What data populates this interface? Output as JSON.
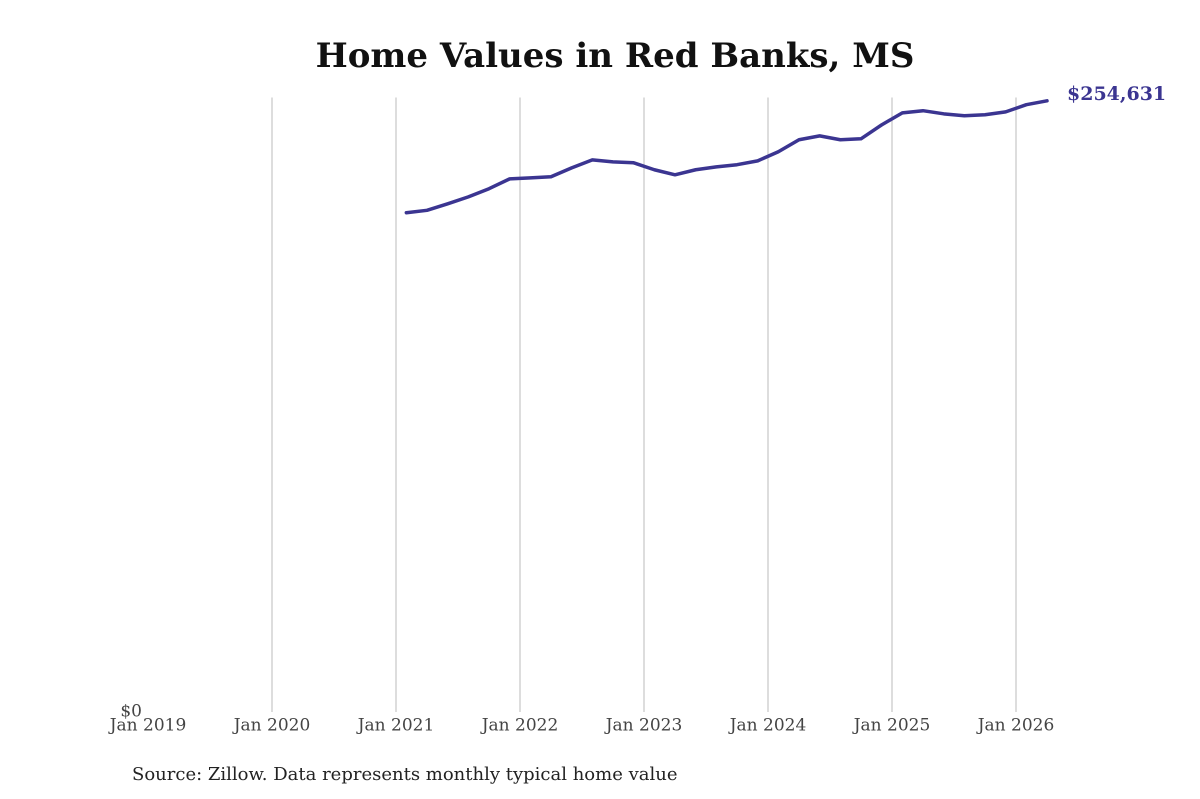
{
  "chart_data": {
    "type": "line",
    "title": "Home Values in Red Banks, MS",
    "source": "Source: Zillow. Data represents monthly typical home value",
    "x": [
      "2021-02",
      "2021-04",
      "2021-06",
      "2021-08",
      "2021-10",
      "2021-12",
      "2022-02",
      "2022-04",
      "2022-06",
      "2022-08",
      "2022-10",
      "2022-12",
      "2023-02",
      "2023-04",
      "2023-06",
      "2023-08",
      "2023-10",
      "2023-12",
      "2024-02",
      "2024-04",
      "2024-06",
      "2024-08",
      "2024-10",
      "2024-12",
      "2025-02",
      "2025-04",
      "2025-06",
      "2025-08",
      "2025-10",
      "2025-12",
      "2026-02",
      "2026-04"
    ],
    "series": [
      {
        "name": "Typical home value",
        "color": "#3b3591",
        "values": [
          208000,
          209000,
          211700,
          214600,
          218000,
          222100,
          222500,
          223000,
          226700,
          230000,
          229200,
          228800,
          225900,
          223800,
          225900,
          227100,
          228000,
          229600,
          233400,
          238400,
          240000,
          238400,
          238800,
          244600,
          249600,
          250500,
          249200,
          248400,
          248800,
          250000,
          253000,
          254631
        ],
        "value_labels": [
          null,
          null,
          null,
          null,
          null,
          null,
          null,
          null,
          null,
          null,
          null,
          null,
          null,
          null,
          null,
          null,
          null,
          null,
          null,
          null,
          null,
          null,
          null,
          null,
          null,
          null,
          null,
          null,
          null,
          null,
          null,
          "$254,631"
        ]
      }
    ],
    "xlim": [
      "2019-01",
      "2026-04"
    ],
    "xticks": [
      {
        "value": "2019-01",
        "label": "Jan 2019"
      },
      {
        "value": "2020-01",
        "label": "Jan 2020"
      },
      {
        "value": "2021-01",
        "label": "Jan 2021"
      },
      {
        "value": "2022-01",
        "label": "Jan 2022"
      },
      {
        "value": "2023-01",
        "label": "Jan 2023"
      },
      {
        "value": "2024-01",
        "label": "Jan 2024"
      },
      {
        "value": "2025-01",
        "label": "Jan 2025"
      },
      {
        "value": "2026-01",
        "label": "Jan 2026"
      }
    ],
    "ylim": [
      0,
      256000
    ],
    "yticks": [
      {
        "value": 0,
        "label": "$0"
      }
    ],
    "grid": "x"
  }
}
